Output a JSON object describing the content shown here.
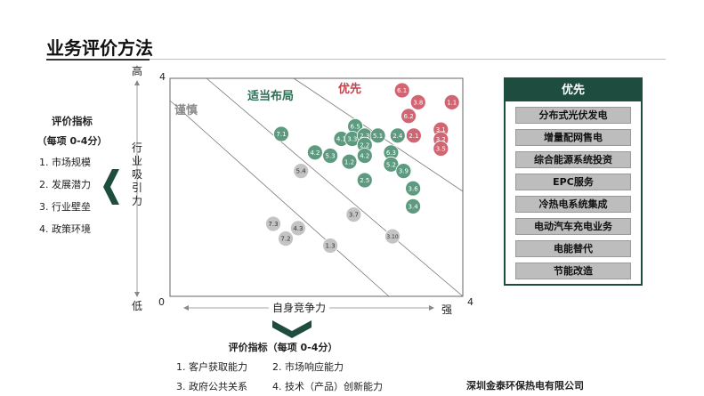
{
  "page_title": "业务评价方法",
  "left_panel": {
    "heading": "评价指标",
    "subheading": "（每项 0-4分）",
    "items": [
      "1.   市场规模",
      "2.   发展潜力",
      "3.   行业壁垒",
      "4.   政策环境"
    ]
  },
  "bottom_panel": {
    "heading": "评价指标（每项 0-4分）",
    "items": [
      "1. 客户获取能力",
      "2. 市场响应能力",
      "3. 政府公共关系",
      "4. 技术（产品）创新能力"
    ]
  },
  "priority_box": {
    "title": "优先",
    "items": [
      "分布式光伏发电",
      "增量配网售电",
      "综合能源系统投资",
      "EPC服务",
      "冷热电系统集成",
      "电动汽车充电业务",
      "电能替代",
      "节能改造"
    ]
  },
  "footer": "深圳金泰环保热电有限公司",
  "colors": {
    "green": "#5e9a80",
    "red": "#d26572",
    "gray": "#c4c4c4",
    "dark_green": "#1e4d3f"
  },
  "chart_data": {
    "type": "scatter",
    "xlabel": "自身竞争力",
    "ylabel": "行业吸引力",
    "x_low": "0",
    "x_high": "强",
    "x_max_label": "4",
    "y_high": "高",
    "y_low": "低",
    "y_max_label": "4",
    "xlim": [
      0,
      4
    ],
    "ylim": [
      0,
      4
    ],
    "grid": false,
    "regions": [
      {
        "label": "谨慎",
        "color": "#8c8c8c"
      },
      {
        "label": "适当布局",
        "color": "#2e6e55"
      },
      {
        "label": "优先",
        "color": "#c0454f"
      }
    ],
    "points": [
      {
        "label": "6.1",
        "x": 3.17,
        "y": 3.78,
        "group": "red"
      },
      {
        "label": "3.8",
        "x": 3.39,
        "y": 3.56,
        "group": "red"
      },
      {
        "label": "1.1",
        "x": 3.85,
        "y": 3.56,
        "group": "red"
      },
      {
        "label": "6.2",
        "x": 3.26,
        "y": 3.31,
        "group": "red"
      },
      {
        "label": "3.1",
        "x": 3.7,
        "y": 3.06,
        "group": "red"
      },
      {
        "label": "2.1",
        "x": 3.33,
        "y": 2.95,
        "group": "red"
      },
      {
        "label": "3.2",
        "x": 3.7,
        "y": 2.88,
        "group": "red"
      },
      {
        "label": "3.5",
        "x": 3.7,
        "y": 2.71,
        "group": "red"
      },
      {
        "label": "6.5",
        "x": 2.53,
        "y": 3.12,
        "group": "green"
      },
      {
        "label": "7.1",
        "x": 1.52,
        "y": 2.98,
        "group": "green"
      },
      {
        "label": "4.1",
        "x": 2.34,
        "y": 2.89,
        "group": "green"
      },
      {
        "label": "3.3",
        "x": 2.49,
        "y": 2.89,
        "group": "green"
      },
      {
        "label": "2.3",
        "x": 2.66,
        "y": 2.95,
        "group": "green"
      },
      {
        "label": "5.1",
        "x": 2.84,
        "y": 2.95,
        "group": "green"
      },
      {
        "label": "2.4",
        "x": 3.11,
        "y": 2.95,
        "group": "green"
      },
      {
        "label": "2.2",
        "x": 2.66,
        "y": 2.78,
        "group": "green"
      },
      {
        "label": "4.2",
        "x": 1.98,
        "y": 2.64,
        "group": "green"
      },
      {
        "label": "5.3",
        "x": 2.19,
        "y": 2.58,
        "group": "green"
      },
      {
        "label": "4.2",
        "x": 2.66,
        "y": 2.58,
        "group": "green"
      },
      {
        "label": "6.3",
        "x": 3.02,
        "y": 2.64,
        "group": "green"
      },
      {
        "label": "1.2",
        "x": 2.45,
        "y": 2.47,
        "group": "green"
      },
      {
        "label": "5.2",
        "x": 3.02,
        "y": 2.42,
        "group": "green"
      },
      {
        "label": "3.9",
        "x": 3.19,
        "y": 2.3,
        "group": "green"
      },
      {
        "label": "2.5",
        "x": 2.66,
        "y": 2.13,
        "group": "green"
      },
      {
        "label": "3.6",
        "x": 3.32,
        "y": 1.98,
        "group": "green"
      },
      {
        "label": "3.4",
        "x": 3.32,
        "y": 1.65,
        "group": "green"
      },
      {
        "label": "5.4",
        "x": 1.79,
        "y": 2.3,
        "group": "gray"
      },
      {
        "label": "3.7",
        "x": 2.51,
        "y": 1.5,
        "group": "gray"
      },
      {
        "label": "7.3",
        "x": 1.41,
        "y": 1.33,
        "group": "gray"
      },
      {
        "label": "4.3",
        "x": 1.75,
        "y": 1.25,
        "group": "gray"
      },
      {
        "label": "7.2",
        "x": 1.58,
        "y": 1.06,
        "group": "gray"
      },
      {
        "label": "3.10",
        "x": 3.04,
        "y": 1.1,
        "group": "gray"
      },
      {
        "label": "1.3",
        "x": 2.19,
        "y": 0.93,
        "group": "gray"
      }
    ]
  }
}
